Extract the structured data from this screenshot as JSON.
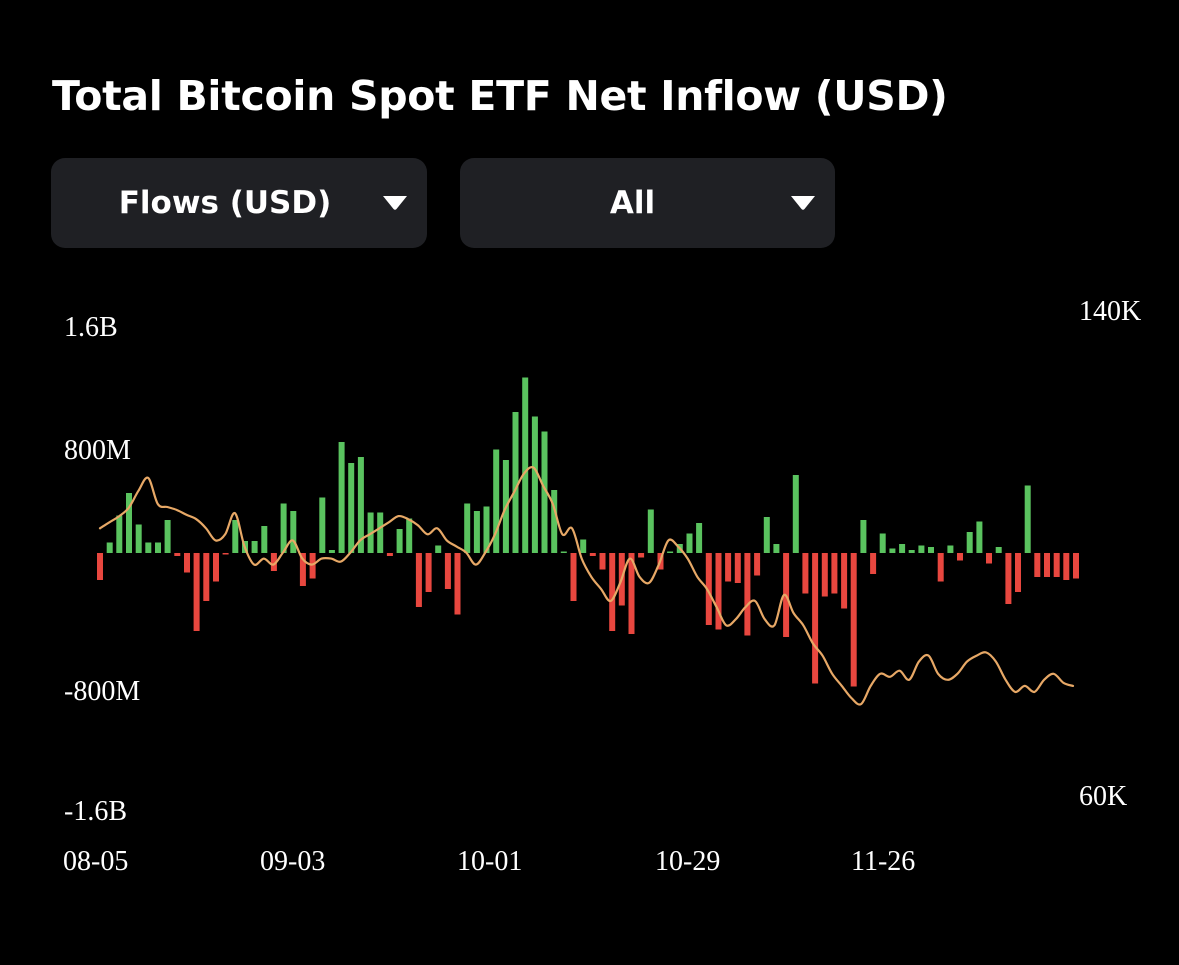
{
  "header": {
    "title": "Total Bitcoin Spot ETF Net Inflow (USD)"
  },
  "controls": {
    "metric_label": "Flows (USD)",
    "range_label": "All",
    "caret_icon": "caret-down-icon"
  },
  "colors": {
    "background": "#000000",
    "dropdown_bg": "#1f2024",
    "inflow": "#5ac35f",
    "outflow": "#e8473f",
    "price_line": "#e7a866"
  },
  "chart_data": {
    "type": "bar",
    "y_left": {
      "ticks": [
        "1.6B",
        "800M",
        "-800M",
        "-1.6B"
      ],
      "ylim": [
        -1.6,
        1.6
      ],
      "unit": "B USD"
    },
    "y_right": {
      "ticks": [
        "140K",
        "60K"
      ],
      "ylim": [
        60,
        140
      ],
      "unit": "K USD"
    },
    "x_ticks": [
      "08-05",
      "09-03",
      "10-01",
      "10-29",
      "11-26"
    ],
    "series": [
      {
        "kind": "bars",
        "values": [
          -0.18,
          0.07,
          0.25,
          0.4,
          0.19,
          0.07,
          0.07,
          0.22,
          -0.02,
          -0.13,
          -0.52,
          -0.32,
          -0.19,
          -0.01,
          0.22,
          0.08,
          0.08,
          0.18,
          -0.12,
          0.33,
          0.28,
          -0.22,
          -0.17,
          0.37,
          0.02,
          0.74,
          0.6,
          0.64,
          0.27,
          0.27,
          -0.02,
          0.16,
          0.23,
          -0.36,
          -0.26,
          0.05,
          -0.24,
          -0.41,
          0.33,
          0.28,
          0.31,
          0.69,
          0.62,
          0.94,
          1.17,
          0.91,
          0.81,
          0.42,
          0.01,
          -0.32,
          0.09,
          -0.02,
          -0.11,
          -0.52,
          -0.35,
          -0.54,
          -0.03,
          0.29,
          -0.11,
          0.01,
          0.06,
          0.13,
          0.2,
          -0.48,
          -0.51,
          -0.19,
          -0.2,
          -0.55,
          -0.15,
          0.24,
          0.06,
          -0.56,
          0.52,
          -0.27,
          -0.87,
          -0.29,
          -0.27,
          -0.37,
          -0.89,
          0.22,
          -0.14,
          0.13,
          0.03,
          0.06,
          0.02,
          0.05,
          0.04,
          -0.19,
          0.05,
          -0.05,
          0.14,
          0.21,
          -0.07,
          0.04,
          -0.34,
          -0.26,
          0.45,
          -0.16,
          -0.16,
          -0.16,
          -0.18,
          -0.17
        ]
      },
      {
        "kind": "line",
        "values": [
          104.0,
          105.0,
          106.0,
          107.4,
          110.2,
          112.3,
          108.0,
          107.5,
          107.0,
          106.2,
          105.5,
          104.0,
          102.0,
          103.0,
          106.5,
          101.0,
          98.0,
          99.0,
          98.0,
          100.0,
          102.0,
          99.0,
          98.0,
          99.0,
          99.0,
          98.5,
          100.0,
          102.0,
          103.0,
          104.0,
          105.0,
          106.0,
          105.5,
          104.5,
          103.0,
          104.0,
          102.0,
          101.0,
          100.0,
          98.0,
          100.0,
          103.0,
          107.0,
          110.0,
          113.0,
          114.0,
          111.0,
          108.0,
          103.0,
          104.0,
          99.0,
          96.0,
          94.0,
          92.0,
          95.0,
          99.0,
          96.0,
          95.0,
          98.0,
          102.0,
          101.0,
          99.0,
          96.0,
          94.0,
          91.0,
          88.0,
          89.0,
          91.0,
          92.0,
          89.0,
          88.0,
          93.0,
          90.0,
          88.0,
          85.0,
          83.0,
          80.0,
          78.0,
          76.0,
          75.0,
          78.0,
          80.0,
          79.5,
          80.5,
          79.0,
          82.0,
          83.0,
          80.0,
          79.0,
          80.0,
          82.0,
          83.0,
          83.5,
          82.0,
          79.0,
          77.0,
          78.0,
          77.0,
          79.0,
          80.0,
          78.5,
          78.0
        ]
      }
    ]
  }
}
